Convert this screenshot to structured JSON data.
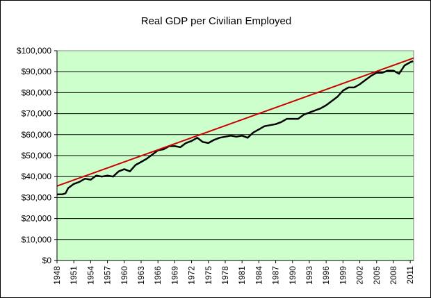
{
  "chart_data": {
    "type": "line",
    "title": "Real GDP per Civilian Employed",
    "xlabel": "",
    "ylabel": "",
    "xlim": [
      1948,
      2011.6
    ],
    "ylim": [
      0,
      100000
    ],
    "grid": "horizontal",
    "plot_background": "#ccffcc",
    "y_ticks": [
      0,
      10000,
      20000,
      30000,
      40000,
      50000,
      60000,
      70000,
      80000,
      90000,
      100000
    ],
    "y_tick_labels": [
      "$0",
      "$10,000",
      "$20,000",
      "$30,000",
      "$40,000",
      "$50,000",
      "$60,000",
      "$70,000",
      "$80,000",
      "$90,000",
      "$100,000"
    ],
    "x_ticks": [
      1948,
      1951,
      1954,
      1957,
      1960,
      1963,
      1966,
      1969,
      1972,
      1975,
      1978,
      1981,
      1984,
      1987,
      1990,
      1993,
      1996,
      1999,
      2002,
      2005,
      2008,
      2011
    ],
    "x_tick_labels": [
      "1948",
      "1951",
      "1954",
      "1957",
      "1960",
      "1963",
      "1966",
      "1969",
      "1972",
      "1975",
      "1978",
      "1981",
      "1984",
      "1987",
      "1990",
      "1993",
      "1996",
      "1999",
      "2002",
      "2005",
      "2008",
      "2011"
    ],
    "series": [
      {
        "color": "#000000",
        "x": [
          1948,
          1949,
          1949.5,
          1950,
          1951,
          1952,
          1953,
          1954,
          1955,
          1956,
          1957,
          1958,
          1959,
          1960,
          1961,
          1962,
          1963,
          1964,
          1965,
          1966,
          1967,
          1968,
          1969,
          1970,
          1971,
          1972,
          1973,
          1974,
          1975,
          1976,
          1977,
          1978,
          1979,
          1980,
          1981,
          1982,
          1983,
          1984,
          1985,
          1986,
          1987,
          1988,
          1989,
          1990,
          1991,
          1992,
          1993,
          1994,
          1995,
          1996,
          1997,
          1998,
          1999,
          2000,
          2001,
          2002,
          2003,
          2004,
          2005,
          2006,
          2007,
          2008,
          2009,
          2010,
          2011,
          2011.5
        ],
        "y": [
          31500,
          31600,
          32000,
          34500,
          36500,
          37500,
          39000,
          38500,
          40500,
          40000,
          40500,
          40000,
          42500,
          43500,
          42500,
          45500,
          47000,
          48500,
          50500,
          52500,
          53000,
          54500,
          54500,
          54000,
          56000,
          57000,
          58500,
          56500,
          56000,
          57500,
          58500,
          59000,
          59500,
          59000,
          59500,
          58500,
          61000,
          62500,
          64000,
          64500,
          65000,
          66000,
          67500,
          67500,
          67500,
          69500,
          70500,
          71500,
          72500,
          74000,
          76000,
          78000,
          81000,
          82500,
          82500,
          84000,
          86000,
          88000,
          89500,
          89500,
          90500,
          90500,
          89000,
          93000,
          94500,
          95000
        ]
      },
      {
        "color": "#cc0000",
        "x": [
          1948,
          2011.6
        ],
        "y": [
          35500,
          96500
        ]
      }
    ]
  }
}
